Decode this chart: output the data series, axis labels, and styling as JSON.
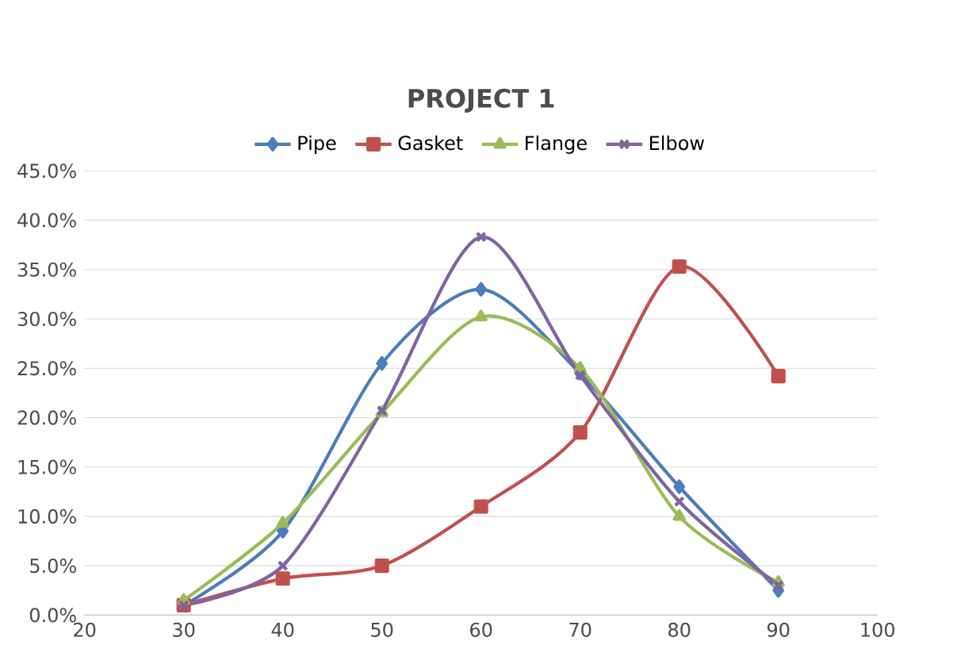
{
  "chart_data": {
    "type": "line",
    "title": "PROJECT 1",
    "x": [
      30,
      40,
      50,
      60,
      70,
      80,
      90
    ],
    "series": [
      {
        "name": "Pipe",
        "color": "#4a7ebb",
        "marker": "diamond",
        "values": [
          1.0,
          8.5,
          25.5,
          33.0,
          24.5,
          13.0,
          2.5
        ]
      },
      {
        "name": "Gasket",
        "color": "#c0504d",
        "marker": "square",
        "values": [
          1.0,
          3.7,
          5.0,
          11.0,
          18.5,
          35.3,
          24.2
        ]
      },
      {
        "name": "Flange",
        "color": "#9bbb59",
        "marker": "triangle",
        "values": [
          1.5,
          9.3,
          20.5,
          30.2,
          25.0,
          10.0,
          3.3
        ]
      },
      {
        "name": "Elbow",
        "color": "#8064a2",
        "marker": "cross",
        "values": [
          1.0,
          5.0,
          20.7,
          38.3,
          24.3,
          11.5,
          3.0
        ]
      }
    ],
    "xlim": [
      20,
      100
    ],
    "xticks": [
      20,
      30,
      40,
      50,
      60,
      70,
      80,
      90,
      100
    ],
    "ylim": [
      0,
      45
    ],
    "yticks": [
      {
        "value": 0,
        "label": "0.0%"
      },
      {
        "value": 5,
        "label": "5.0%"
      },
      {
        "value": 10,
        "label": "10.0%"
      },
      {
        "value": 15,
        "label": "15.0%"
      },
      {
        "value": 20,
        "label": "20.0%"
      },
      {
        "value": 25,
        "label": "25.0%"
      },
      {
        "value": 30,
        "label": "30.0%"
      },
      {
        "value": 35,
        "label": "35.0%"
      },
      {
        "value": 40,
        "label": "40.0%"
      },
      {
        "value": 45,
        "label": "45.0%"
      }
    ],
    "grid": "y",
    "legend": "top",
    "line_style": "solid"
  }
}
